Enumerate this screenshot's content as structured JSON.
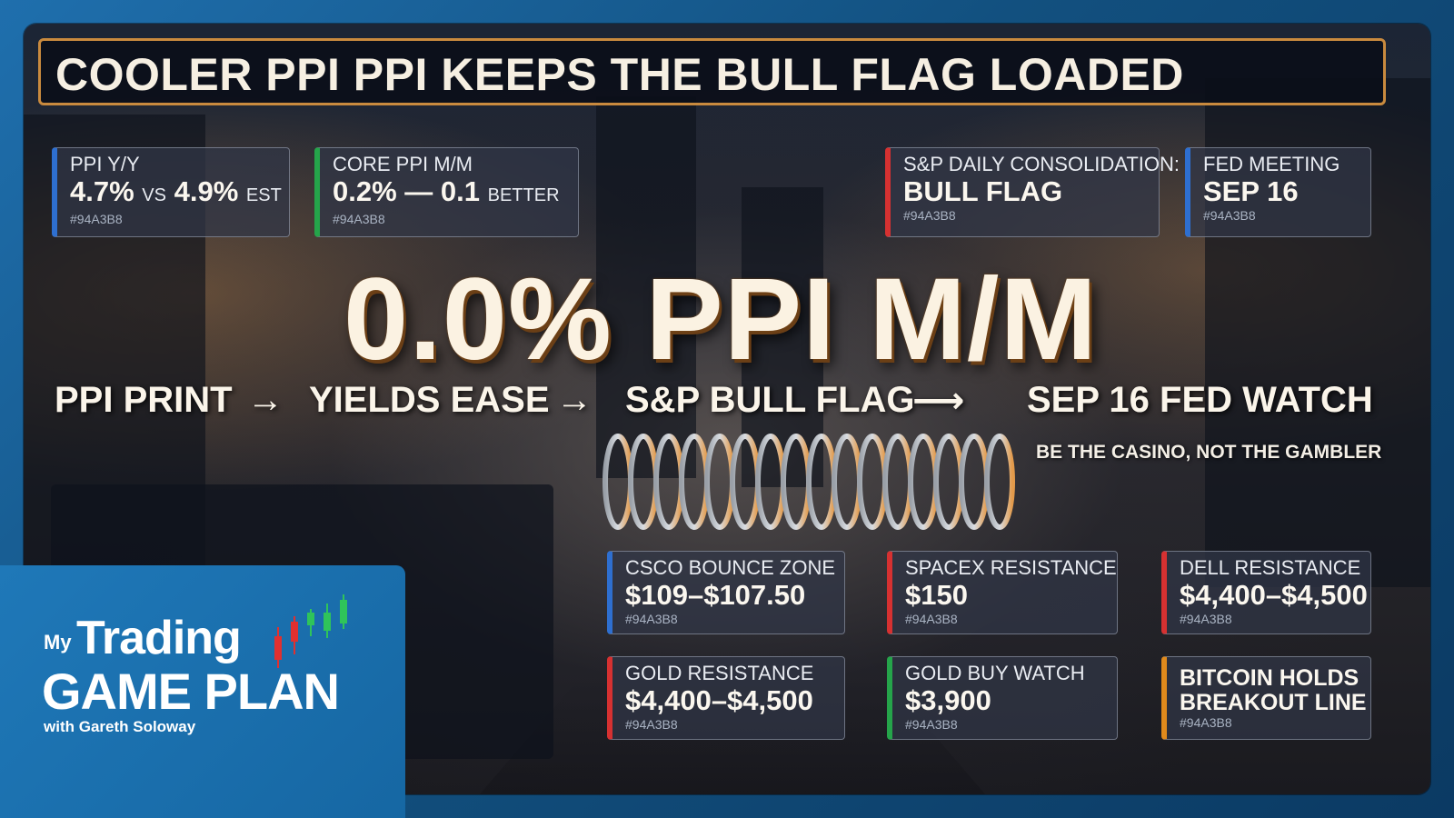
{
  "title": "COOLER PPI PPI KEEPS THE BULL FLAG LOADED",
  "top_cards": [
    {
      "label": "PPI Y/Y",
      "value_a": "4.7%",
      "vs": "VS",
      "value_b": "4.9%",
      "suffix": "EST",
      "tag": "#94A3B8",
      "accent": "#2e6fd0"
    },
    {
      "label": "CORE PPI M/M",
      "value_a": "0.2% — 0.1",
      "suffix": "BETTER",
      "tag": "#94A3B8",
      "accent": "#25a44a"
    },
    {
      "label": "S&P DAILY CONSOLIDATION:",
      "value": "BULL FLAG",
      "tag": "#94A3B8",
      "accent": "#d63131"
    },
    {
      "label": "FED MEETING",
      "value": "SEP 16",
      "tag": "#94A3B8",
      "accent": "#2e6fd0"
    }
  ],
  "headline": "0.0% PPI M/M",
  "flow": {
    "steps": [
      "PPI PRINT",
      "YIELDS EASE",
      "S&P BULL FLAG",
      "SEP 16 FED WATCH"
    ],
    "arrows": [
      "→",
      "→",
      "⟶"
    ]
  },
  "tagline": "BE THE CASINO, NOT THE GAMBLER",
  "level_cards": [
    {
      "label": "CSCO BOUNCE ZONE",
      "value": "$109–$107.50",
      "tag": "#94A3B8",
      "accent": "#2e6fd0"
    },
    {
      "label": "SPACEX RESISTANCE",
      "value": "$150",
      "tag": "#94A3B8",
      "accent": "#d63131"
    },
    {
      "label": "DELL RESISTANCE",
      "value": "$4,400–$4,500",
      "tag": "#94A3B8",
      "accent": "#d63131"
    },
    {
      "label": "GOLD RESISTANCE",
      "value": "$4,400–$4,500",
      "tag": "#94A3B8",
      "accent": "#d63131"
    },
    {
      "label": "GOLD BUY WATCH",
      "value": "$3,900",
      "tag": "#94A3B8",
      "accent": "#25a44a"
    },
    {
      "label_line1": "BITCOIN HOLDS",
      "label_line2": "BREAKOUT LINE",
      "tag": "#94A3B8",
      "accent": "#e08a1c"
    }
  ],
  "brand": {
    "my": "My",
    "trading": "Trading",
    "game_plan": "GAME PLAN",
    "with": "with Gareth Soloway"
  },
  "colors": {
    "title_border": "#c98a3e",
    "brand_blue": "#1f78b8",
    "headline_text": "#fbf2e2"
  }
}
